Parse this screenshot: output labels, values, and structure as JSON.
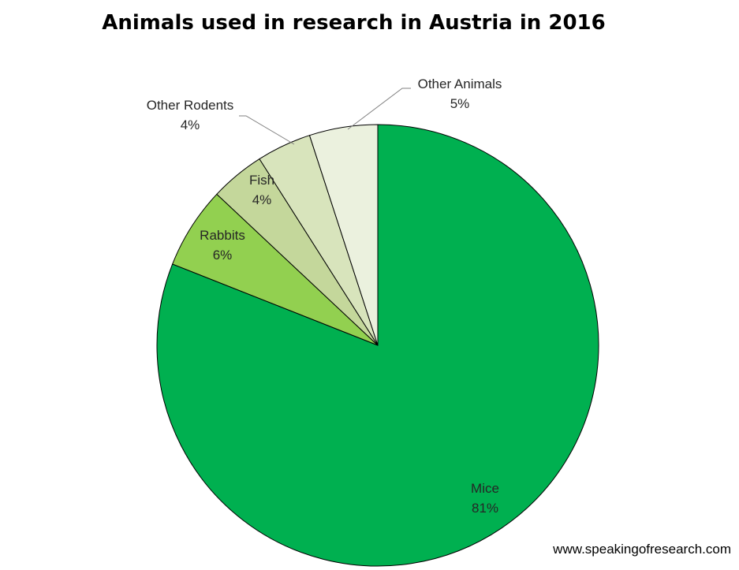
{
  "chart_data": {
    "type": "pie",
    "title": "Animals used in research in Austria in 2016",
    "slices": [
      {
        "label": "Mice",
        "percent_label": "81%",
        "value": 81,
        "color": "#00b050"
      },
      {
        "label": "Rabbits",
        "percent_label": "6%",
        "value": 6,
        "color": "#92d050"
      },
      {
        "label": "Fish",
        "percent_label": "4%",
        "value": 4,
        "color": "#c4d79b"
      },
      {
        "label": "Other Rodents",
        "percent_label": "4%",
        "value": 4,
        "color": "#d8e4bc"
      },
      {
        "label": "Other Animals",
        "percent_label": "5%",
        "value": 5,
        "color": "#ebf1de"
      }
    ],
    "start_angle": "12 o'clock",
    "direction": "clockwise",
    "slice_border_color": "#000000"
  },
  "footer": {
    "website": "www.speakingofresearch.com"
  }
}
